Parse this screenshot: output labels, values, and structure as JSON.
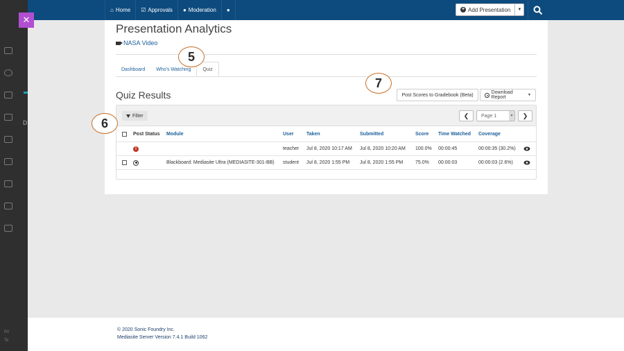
{
  "nav": {
    "items": [
      {
        "label": "Home",
        "icon": "home-icon"
      },
      {
        "label": "Approvals",
        "icon": "check-square-icon"
      },
      {
        "label": "Moderation",
        "icon": "user-icon"
      },
      {
        "label": "",
        "icon": "user-icon"
      }
    ],
    "add_presentation": "Add Presentation"
  },
  "page": {
    "title": "Presentation Analytics",
    "video": "NASA Video"
  },
  "tabs": [
    {
      "label": "Dashboard"
    },
    {
      "label": "Who's Watching"
    },
    {
      "label": "Quiz"
    }
  ],
  "quiz": {
    "title": "Quiz Results",
    "post_scores_label": "Post Scores to Gradebook (Beta)",
    "download_label": "Download Report",
    "filter_label": "Filter",
    "page_label": "Page 1",
    "columns": [
      "Post Status",
      "Module",
      "User",
      "Taken",
      "Submitted",
      "Score",
      "Time Watched",
      "Coverage"
    ],
    "rows": [
      {
        "status": "error",
        "module": "",
        "user": "teacher",
        "taken": "Jul 8, 2020 10:17 AM",
        "submitted": "Jul 8, 2020 10:20 AM",
        "score": "100.0%",
        "time_watched": "00:00:45",
        "coverage": "00:00:35 (30.2%)"
      },
      {
        "status": "posted",
        "module": "Blackboard: Mediasite Ultra (MEDIASITE-301-BB)",
        "user": "student",
        "taken": "Jul 8, 2020 1:55 PM",
        "submitted": "Jul 8, 2020 1:55 PM",
        "score": "75.0%",
        "time_watched": "00:00:03",
        "coverage": "00:00:03 (2.6%)"
      }
    ]
  },
  "callouts": [
    "5",
    "6",
    "7"
  ],
  "footer": {
    "copyright": "© 2020 Sonic Foundry Inc.",
    "version": "Mediasite Server Version 7.4.1 Build 1062"
  },
  "sidebar": {
    "section_letter": "D",
    "footer_line1": "Pri",
    "footer_line2": "Te"
  }
}
